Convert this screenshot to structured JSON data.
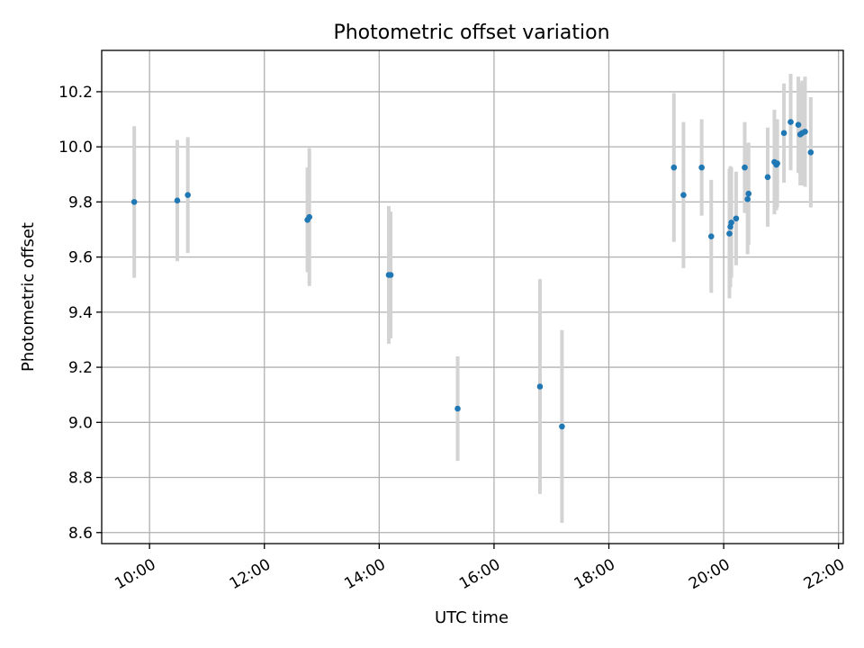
{
  "chart_data": {
    "type": "scatter",
    "title": "Photometric offset variation",
    "xlabel": "UTC time",
    "ylabel": "Photometric offset",
    "xlim": [
      "09:10",
      "22:05"
    ],
    "ylim": [
      8.56,
      10.35
    ],
    "grid": true,
    "xticks": [
      "10:00",
      "12:00",
      "14:00",
      "16:00",
      "18:00",
      "20:00",
      "22:00"
    ],
    "yticks": [
      "8.6",
      "8.8",
      "9.0",
      "9.2",
      "9.4",
      "9.6",
      "9.8",
      "10.0",
      "10.2"
    ],
    "colors": {
      "point": "#1f77b4",
      "errorbar": "#d3d3d3",
      "grid": "#b0b0b0"
    },
    "series": [
      {
        "points": [
          {
            "x": "09:44",
            "y": 9.8,
            "err": 0.275
          },
          {
            "x": "10:29",
            "y": 9.805,
            "err": 0.22
          },
          {
            "x": "10:40",
            "y": 9.825,
            "err": 0.21
          },
          {
            "x": "12:45",
            "y": 9.735,
            "err": 0.19
          },
          {
            "x": "12:47",
            "y": 9.745,
            "err": 0.25
          },
          {
            "x": "14:10",
            "y": 9.535,
            "err": 0.25
          },
          {
            "x": "14:12",
            "y": 9.535,
            "err": 0.23
          },
          {
            "x": "15:22",
            "y": 9.05,
            "err": 0.19
          },
          {
            "x": "16:48",
            "y": 9.13,
            "err": 0.39
          },
          {
            "x": "17:11",
            "y": 8.985,
            "err": 0.35
          },
          {
            "x": "19:08",
            "y": 9.925,
            "err": 0.27
          },
          {
            "x": "19:18",
            "y": 9.825,
            "err": 0.265
          },
          {
            "x": "19:37",
            "y": 9.925,
            "err": 0.175
          },
          {
            "x": "19:47",
            "y": 9.675,
            "err": 0.205
          },
          {
            "x": "20:06",
            "y": 9.685,
            "err": 0.235
          },
          {
            "x": "20:07",
            "y": 9.71,
            "err": 0.22
          },
          {
            "x": "20:08",
            "y": 9.725,
            "err": 0.2
          },
          {
            "x": "20:13",
            "y": 9.74,
            "err": 0.17
          },
          {
            "x": "20:22",
            "y": 9.925,
            "err": 0.165
          },
          {
            "x": "20:25",
            "y": 9.81,
            "err": 0.2
          },
          {
            "x": "20:26",
            "y": 9.83,
            "err": 0.185
          },
          {
            "x": "20:46",
            "y": 9.89,
            "err": 0.18
          },
          {
            "x": "20:53",
            "y": 9.945,
            "err": 0.19
          },
          {
            "x": "20:55",
            "y": 9.935,
            "err": 0.165
          },
          {
            "x": "20:56",
            "y": 9.94,
            "err": 0.16
          },
          {
            "x": "21:03",
            "y": 10.05,
            "err": 0.18
          },
          {
            "x": "21:10",
            "y": 10.09,
            "err": 0.175
          },
          {
            "x": "21:18",
            "y": 10.08,
            "err": 0.175
          },
          {
            "x": "21:20",
            "y": 10.045,
            "err": 0.185
          },
          {
            "x": "21:22",
            "y": 10.05,
            "err": 0.19
          },
          {
            "x": "21:25",
            "y": 10.055,
            "err": 0.2
          },
          {
            "x": "21:31",
            "y": 9.98,
            "err": 0.2
          }
        ]
      }
    ]
  }
}
